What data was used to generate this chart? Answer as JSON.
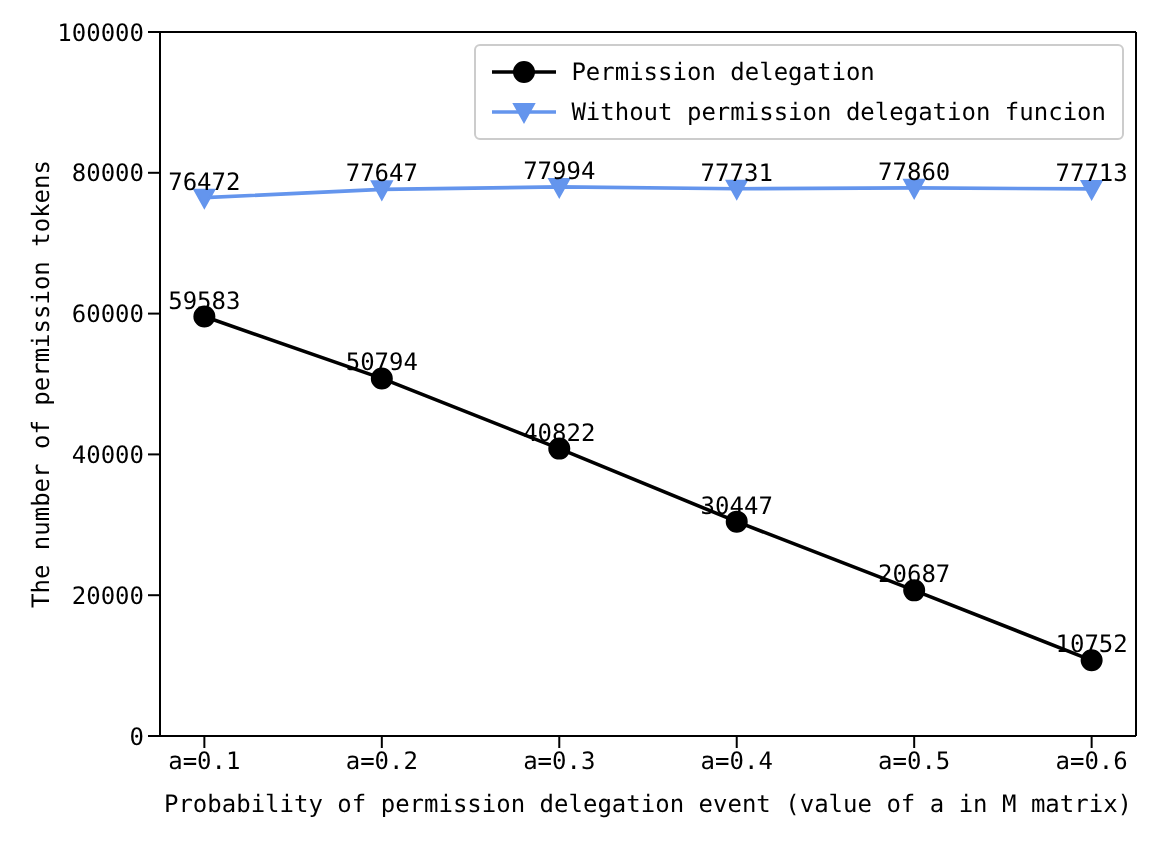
{
  "chart_data": {
    "type": "line",
    "xlabel": "Probability of permission delegation event (value of a in M matrix)",
    "ylabel": "The number of permission tokens",
    "categories": [
      "a=0.1",
      "a=0.2",
      "a=0.3",
      "a=0.4",
      "a=0.5",
      "a=0.6"
    ],
    "series": [
      {
        "name": "Permission delegation",
        "color": "#000000",
        "marker": "circle",
        "values": [
          59583,
          50794,
          40822,
          30447,
          20687,
          10752
        ]
      },
      {
        "name": "Without permission delegation funcion",
        "color": "#6495ed",
        "marker": "triangle",
        "values": [
          76472,
          77647,
          77994,
          77731,
          77860,
          77713
        ]
      }
    ],
    "ylim": [
      0,
      100000
    ],
    "yticks": [
      0,
      20000,
      40000,
      60000,
      80000,
      100000
    ],
    "legend": "top right",
    "data_labels": true,
    "line_style": "solid"
  }
}
